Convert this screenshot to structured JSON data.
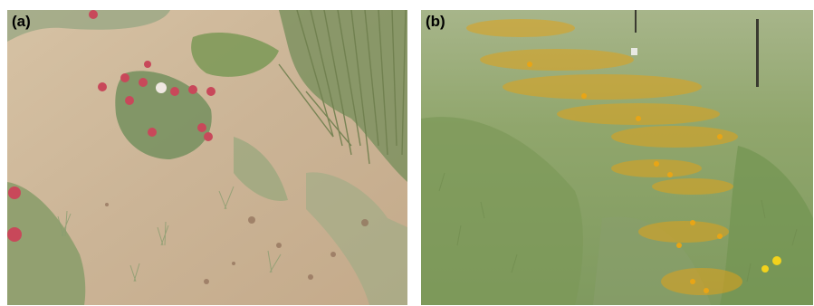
{
  "panels": [
    {
      "label": "(a)"
    },
    {
      "label": "(b)"
    }
  ],
  "colors": {
    "soil": "#cdb79a",
    "grass": "#8aa36a",
    "flower_pink": "#c8485a",
    "flower_yellow": "#e0a21a"
  }
}
